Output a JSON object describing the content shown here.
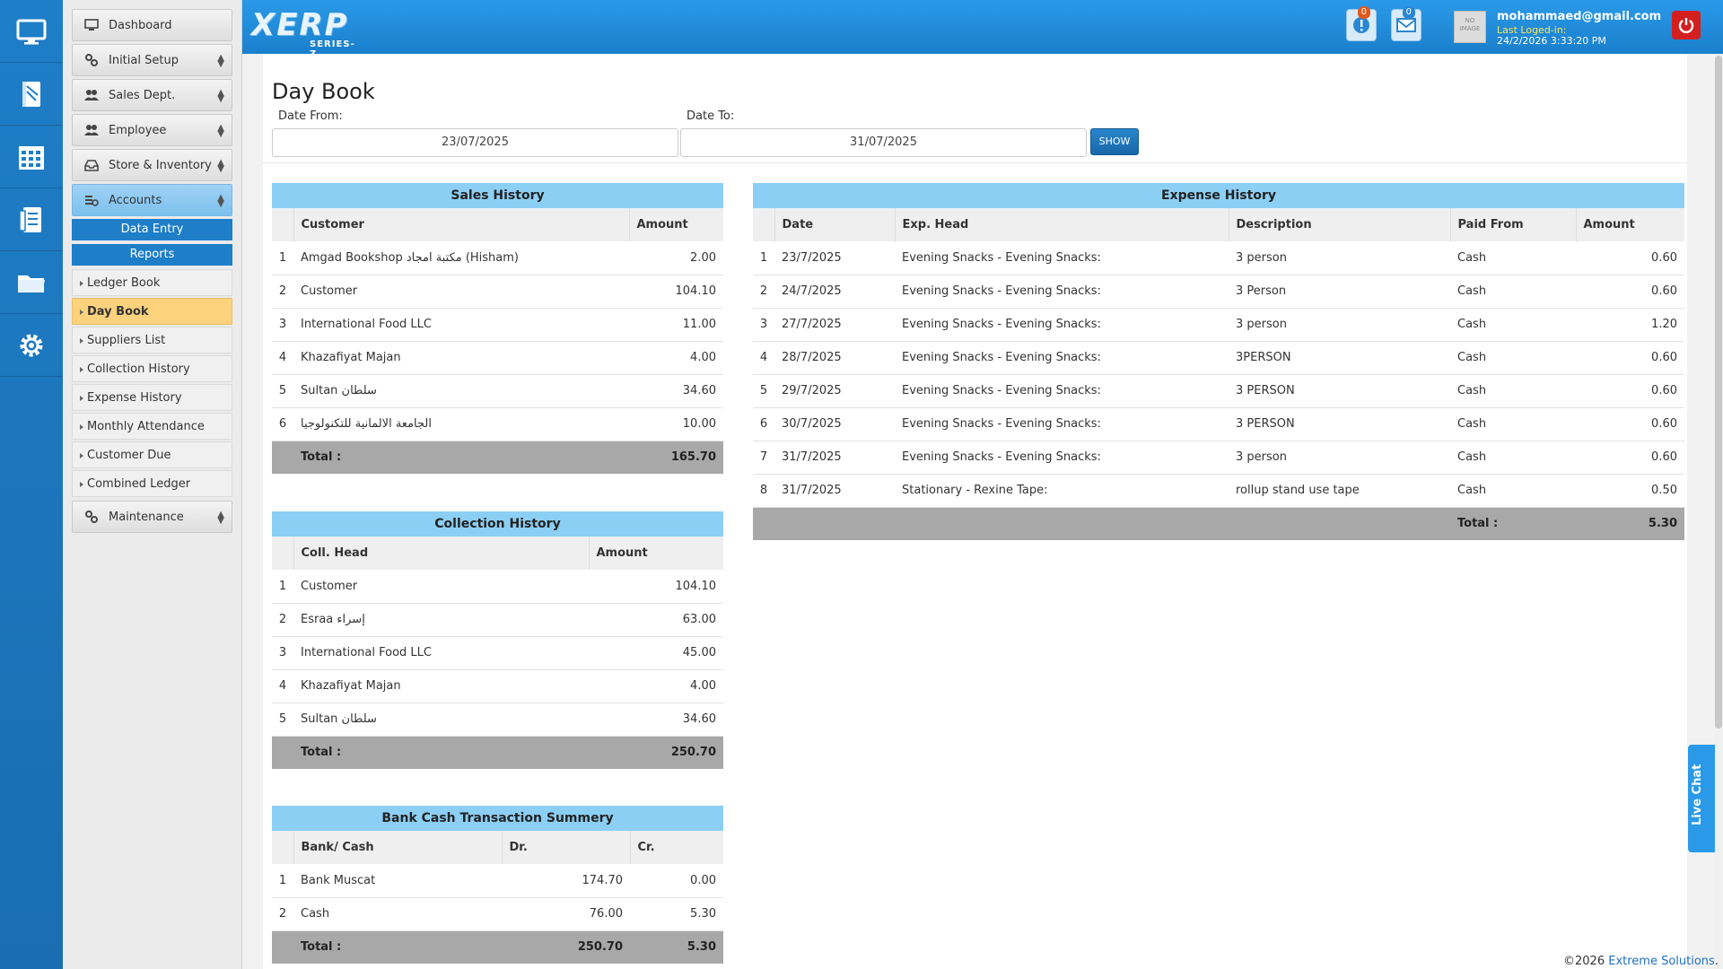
{
  "app": {
    "logo_text": "XERP",
    "logo_sub": "SERIES-Z"
  },
  "header": {
    "notifications_count": "0",
    "messages_count": "0",
    "avatar_text": "NO IMAGE",
    "user_email": "mohammaed@gmail.com",
    "last_logged_label": "Last Loged-in:",
    "last_logged_time": "24/2/2026 3:33:20 PM"
  },
  "rail": [
    "monitor-icon",
    "book-icon",
    "calendar-icon",
    "report-icon",
    "folder-icon",
    "settings-icon"
  ],
  "menu": {
    "dashboard": "Dashboard",
    "initial_setup": "Initial Setup",
    "sales_dept": "Sales Dept.",
    "employee": "Employee",
    "store_inventory": "Store & Inventory",
    "accounts": "Accounts",
    "data_entry": "Data Entry",
    "reports": "Reports",
    "reports_items": [
      "Ledger Book",
      "Day Book",
      "Suppliers List",
      "Collection History",
      "Expense History",
      "Monthly Attendance",
      "Customer Due",
      "Combined Ledger"
    ],
    "maintenance": "Maintenance"
  },
  "page": {
    "title": "Day Book",
    "date_from_label": "Date From:",
    "date_from": "23/07/2025",
    "date_to_label": "Date To:",
    "date_to": "31/07/2025",
    "show_label": "SHOW"
  },
  "sales_history": {
    "title": "Sales History",
    "headers": [
      "Customer",
      "Amount"
    ],
    "rows": [
      [
        "1",
        "Amgad Bookshop مكتبة امجاد (Hisham)",
        "2.00"
      ],
      [
        "2",
        "Customer",
        "104.10"
      ],
      [
        "3",
        "International Food LLC",
        "11.00"
      ],
      [
        "4",
        "Khazafiyat Majan",
        "4.00"
      ],
      [
        "5",
        "Sultan سلطان",
        "34.60"
      ],
      [
        "6",
        "الجامعة الالمانية للتكنولوجيا",
        "10.00"
      ]
    ],
    "total_label": "Total :",
    "total": "165.70"
  },
  "collection_history": {
    "title": "Collection History",
    "headers": [
      "Coll. Head",
      "Amount"
    ],
    "rows": [
      [
        "1",
        "Customer",
        "104.10"
      ],
      [
        "2",
        "Esraa إسراء",
        "63.00"
      ],
      [
        "3",
        "International Food LLC",
        "45.00"
      ],
      [
        "4",
        "Khazafiyat Majan",
        "4.00"
      ],
      [
        "5",
        "Sultan سلطان",
        "34.60"
      ]
    ],
    "total_label": "Total :",
    "total": "250.70"
  },
  "bank_cash": {
    "title": "Bank Cash Transaction Summery",
    "headers": [
      "Bank/ Cash",
      "Dr.",
      "Cr."
    ],
    "rows": [
      [
        "1",
        "Bank Muscat",
        "174.70",
        "0.00"
      ],
      [
        "2",
        "Cash",
        "76.00",
        "5.30"
      ]
    ],
    "total_label": "Total :",
    "total_dr": "250.70",
    "total_cr": "5.30"
  },
  "expense_history": {
    "title": "Expense History",
    "headers": [
      "Date",
      "Exp. Head",
      "Description",
      "Paid From",
      "Amount"
    ],
    "rows": [
      [
        "1",
        "23/7/2025",
        "Evening Snacks - Evening Snacks:",
        "3 person",
        "Cash",
        "0.60"
      ],
      [
        "2",
        "24/7/2025",
        "Evening Snacks - Evening Snacks:",
        "3 Person",
        "Cash",
        "0.60"
      ],
      [
        "3",
        "27/7/2025",
        "Evening Snacks - Evening Snacks:",
        "3 person",
        "Cash",
        "1.20"
      ],
      [
        "4",
        "28/7/2025",
        "Evening Snacks - Evening Snacks:",
        "3PERSON",
        "Cash",
        "0.60"
      ],
      [
        "5",
        "29/7/2025",
        "Evening Snacks - Evening Snacks:",
        "3 PERSON",
        "Cash",
        "0.60"
      ],
      [
        "6",
        "30/7/2025",
        "Evening Snacks - Evening Snacks:",
        "3 PERSON",
        "Cash",
        "0.60"
      ],
      [
        "7",
        "31/7/2025",
        "Evening Snacks - Evening Snacks:",
        "3 person",
        "Cash",
        "0.60"
      ],
      [
        "8",
        "31/7/2025",
        "Stationary - Rexine Tape:",
        "rollup stand use tape",
        "Cash",
        "0.50"
      ]
    ],
    "total_label": "Total :",
    "total": "5.30"
  },
  "footer": {
    "copyright": "©2026",
    "company": "Extreme Solutions",
    "dot": "."
  },
  "live_chat": "Live Chat",
  "colors": {
    "brand_blue": "#1e7ec8",
    "panel_header": "#8ccff5",
    "active_item": "#fcd27d",
    "total_row": "#a8a8a8",
    "power": "#d41f1f"
  }
}
